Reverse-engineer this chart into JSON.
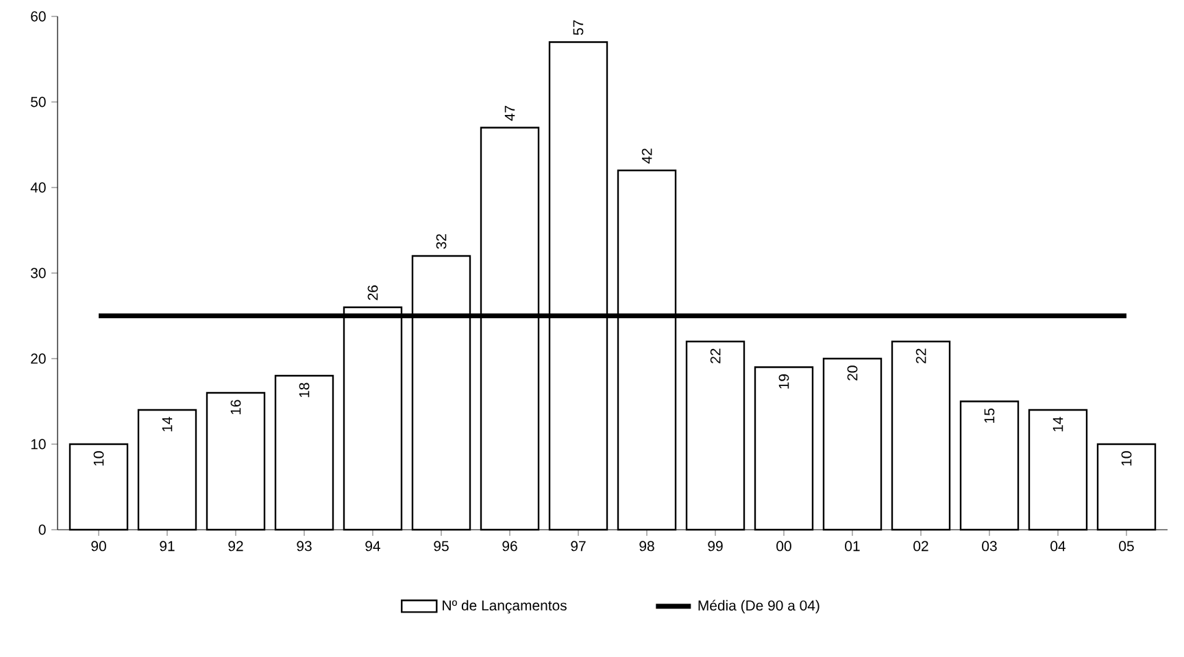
{
  "chart_data": {
    "type": "bar",
    "categories": [
      "90",
      "91",
      "92",
      "93",
      "94",
      "95",
      "96",
      "97",
      "98",
      "99",
      "00",
      "01",
      "02",
      "03",
      "04",
      "05"
    ],
    "series": [
      {
        "name": "Nº de Lançamentos",
        "color": "#ffffff",
        "values": [
          10,
          14,
          16,
          18,
          26,
          32,
          47,
          57,
          42,
          22,
          19,
          20,
          22,
          15,
          14,
          10
        ],
        "value_labels": [
          "10",
          "14",
          "16",
          "18",
          "26",
          "32",
          "47",
          "57",
          "42",
          "22",
          "19",
          "20",
          "22",
          "15",
          "14",
          "10"
        ]
      },
      {
        "name": "Média (De 90 a 04)",
        "type": "line",
        "color": "#000000",
        "values": [
          25,
          25,
          25,
          25,
          25,
          25,
          25,
          25,
          25,
          25,
          25,
          25,
          25,
          25,
          25,
          25
        ]
      }
    ],
    "ylim": [
      0,
      60
    ],
    "yticks": [
      0,
      10,
      20,
      30,
      40,
      50,
      60
    ],
    "grid": false,
    "legend": "bottom",
    "marker": "none",
    "line_style": "solid"
  }
}
